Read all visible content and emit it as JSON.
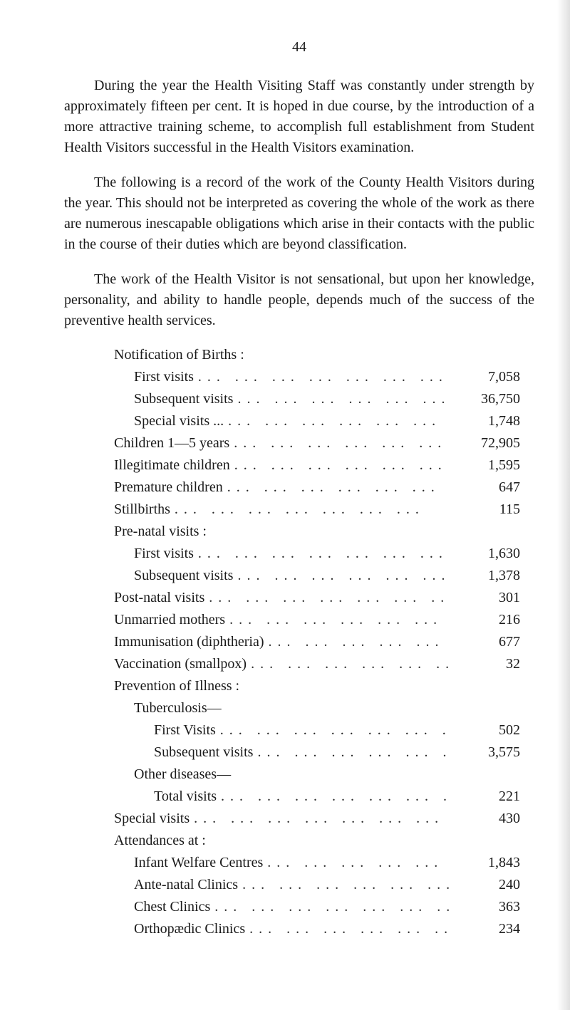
{
  "page_number": "44",
  "paragraphs": [
    "During the year the Health Visiting Staff was constantly under strength by approximately fifteen per cent. It is hoped in due course, by the introduction of a more attractive training scheme, to accomplish full establishment from Student Health Visitors successful in the Health Visitors examination.",
    "The following is a record of the work of the County Health Visitors during the year. This should not be interpreted as covering the whole of the work as there are numerous inescapable obligations which arise in their contacts with the public in the course of their duties which are beyond classification.",
    "The work of the Health Visitor is not sensational, but upon her knowledge, personality, and ability to handle people, depends much of the success of the preventive health services."
  ],
  "rows": [
    {
      "label": "Notification of Births :",
      "value": "",
      "indent": 0,
      "heading": true
    },
    {
      "label": "First visits",
      "value": "7,058",
      "indent": 1,
      "heading": false
    },
    {
      "label": "Subsequent visits",
      "value": "36,750",
      "indent": 1,
      "heading": false
    },
    {
      "label": "Special visits ...",
      "value": "1,748",
      "indent": 1,
      "heading": false
    },
    {
      "label": "Children 1—5 years",
      "value": "72,905",
      "indent": 0,
      "heading": false
    },
    {
      "label": "Illegitimate children",
      "value": "1,595",
      "indent": 0,
      "heading": false
    },
    {
      "label": "Premature children",
      "value": "647",
      "indent": 0,
      "heading": false
    },
    {
      "label": "Stillbirths",
      "value": "115",
      "indent": 0,
      "heading": false
    },
    {
      "label": "Pre-natal visits :",
      "value": "",
      "indent": 0,
      "heading": true
    },
    {
      "label": "First visits",
      "value": "1,630",
      "indent": 1,
      "heading": false
    },
    {
      "label": "Subsequent visits",
      "value": "1,378",
      "indent": 1,
      "heading": false
    },
    {
      "label": "Post-natal visits",
      "value": "301",
      "indent": 0,
      "heading": false
    },
    {
      "label": "Unmarried mothers",
      "value": "216",
      "indent": 0,
      "heading": false
    },
    {
      "label": "Immunisation (diphtheria)",
      "value": "677",
      "indent": 0,
      "heading": false
    },
    {
      "label": "Vaccination (smallpox)",
      "value": "32",
      "indent": 0,
      "heading": false
    },
    {
      "label": "Prevention of Illness :",
      "value": "",
      "indent": 0,
      "heading": true
    },
    {
      "label": "Tuberculosis—",
      "value": "",
      "indent": 1,
      "heading": true
    },
    {
      "label": "First Visits",
      "value": "502",
      "indent": 2,
      "heading": false
    },
    {
      "label": "Subsequent visits",
      "value": "3,575",
      "indent": 2,
      "heading": false
    },
    {
      "label": "Other diseases—",
      "value": "",
      "indent": 1,
      "heading": true
    },
    {
      "label": "Total visits",
      "value": "221",
      "indent": 2,
      "heading": false
    },
    {
      "label": "Special visits",
      "value": "430",
      "indent": 0,
      "heading": false
    },
    {
      "label": "Attendances at :",
      "value": "",
      "indent": 0,
      "heading": true
    },
    {
      "label": "Infant Welfare Centres",
      "value": "1,843",
      "indent": 1,
      "heading": false
    },
    {
      "label": "Ante-natal Clinics",
      "value": "240",
      "indent": 1,
      "heading": false
    },
    {
      "label": "Chest Clinics",
      "value": "363",
      "indent": 1,
      "heading": false
    },
    {
      "label": "Orthopædic Clinics",
      "value": "234",
      "indent": 1,
      "heading": false
    }
  ],
  "leader_dots": "..."
}
